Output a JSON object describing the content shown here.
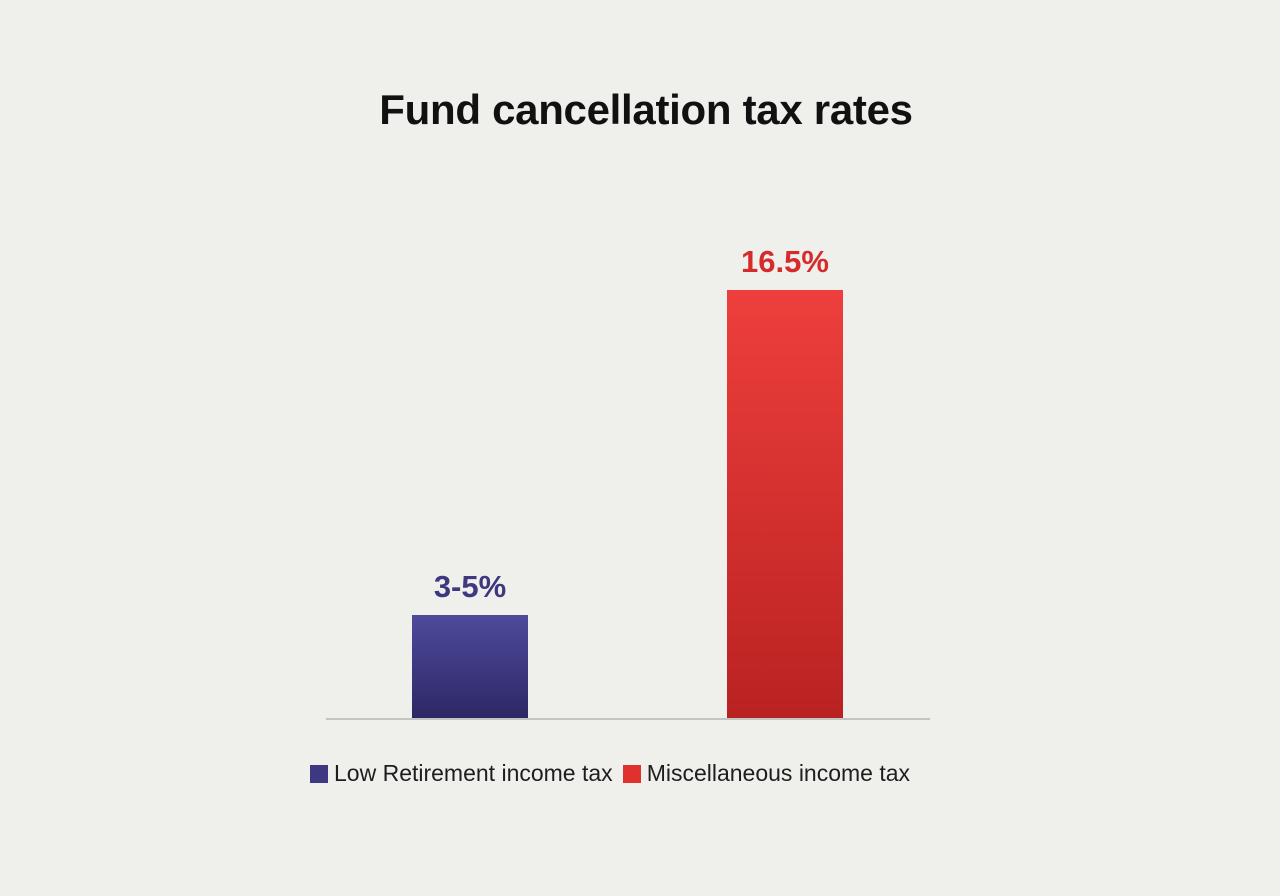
{
  "chart_data": {
    "type": "bar",
    "title": "Fund cancellation tax rates",
    "categories": [
      "Low Retirement income tax",
      "Miscellaneous income tax"
    ],
    "values": [
      4,
      16.5
    ],
    "value_labels": [
      "3-5%",
      "16.5%"
    ],
    "colors": [
      "#3d3880",
      "#e0312f"
    ],
    "ylim": [
      0,
      20
    ],
    "grid": false,
    "legend": {
      "placement": "bottom",
      "entries": [
        {
          "label": "Low Retirement income tax",
          "color": "#3d3880"
        },
        {
          "label": "Miscellaneous income tax",
          "color": "#e0312f"
        }
      ]
    }
  }
}
